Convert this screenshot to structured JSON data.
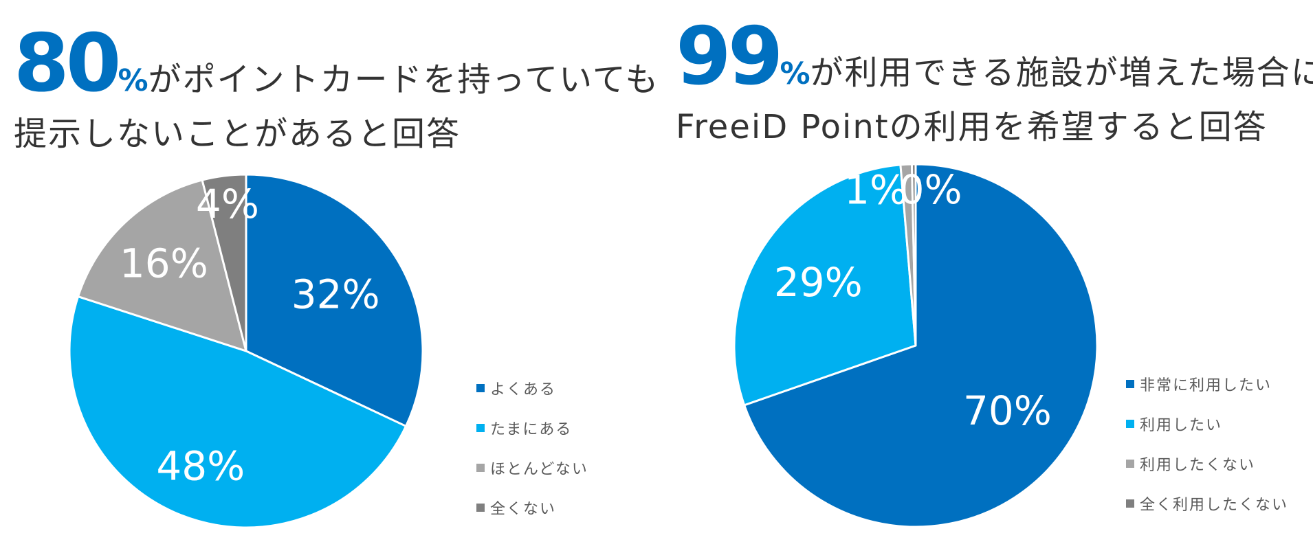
{
  "chart_data": [
    {
      "type": "pie",
      "headline": {
        "number": "80",
        "percent": "%",
        "line1_rest": "がポイントカードを持っていても",
        "line2": "提示しないことがあると回答"
      },
      "categories": [
        "よくある",
        "たまにある",
        "ほとんどない",
        "全くない"
      ],
      "values": [
        32,
        48,
        16,
        4
      ],
      "labels": [
        "32%",
        "48%",
        "16%",
        "4%"
      ],
      "colors": [
        "#0070C0",
        "#00B0F0",
        "#A5A5A5",
        "#7F7F7F"
      ],
      "start": "12 o'clock",
      "direction": "clockwise",
      "legend": "right-bottom"
    },
    {
      "type": "pie",
      "headline": {
        "number": "99",
        "percent": "%",
        "line1_rest": "が利用できる施設が増えた場合に",
        "line2": "FreeiD Pointの利用を希望すると回答"
      },
      "categories": [
        "非常に利用したい",
        "利用したい",
        "利用したくない",
        "全く利用したくない"
      ],
      "values": [
        70,
        29,
        1,
        0
      ],
      "labels": [
        "70%",
        "29%",
        "1%",
        "0%"
      ],
      "colors": [
        "#0070C0",
        "#00B0F0",
        "#A5A5A5",
        "#7F7F7F"
      ],
      "start": "12 o'clock",
      "direction": "clockwise",
      "legend": "right-bottom"
    }
  ]
}
